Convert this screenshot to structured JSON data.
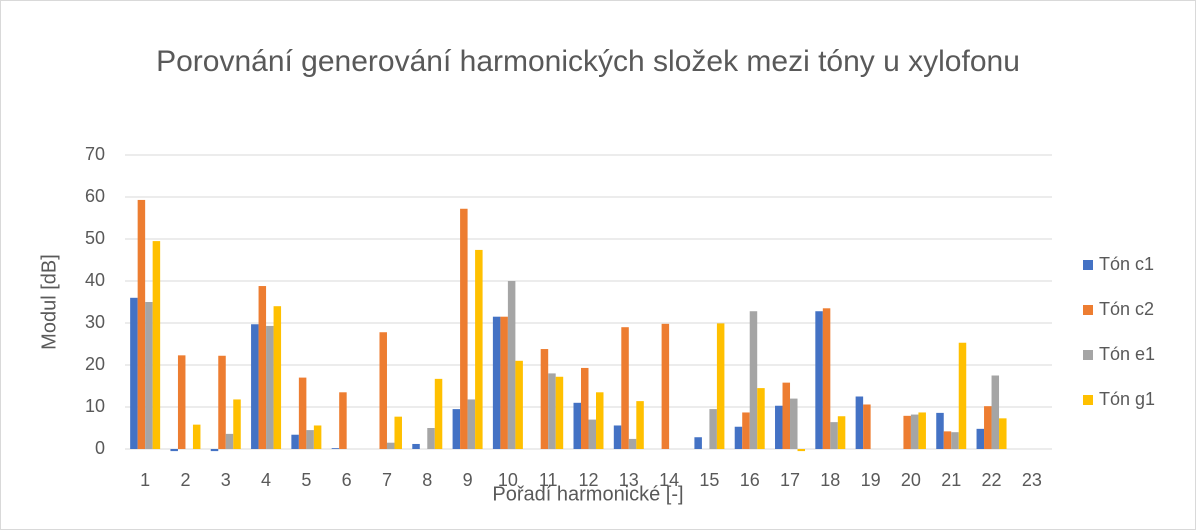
{
  "chart_data": {
    "type": "bar",
    "title": "Porovnání generování harmonických složek mezi tóny u xylofonu",
    "x_label": "Pořadí harmonické [-]",
    "y_label": "Modul [dB]",
    "categories": [
      "1",
      "2",
      "3",
      "4",
      "5",
      "6",
      "7",
      "8",
      "9",
      "10",
      "11",
      "12",
      "13",
      "14",
      "15",
      "16",
      "17",
      "18",
      "19",
      "20",
      "21",
      "22",
      "23"
    ],
    "series": [
      {
        "name": "Tón c1",
        "color": "#4472c4",
        "values": [
          36,
          -0.5,
          -0.5,
          29.7,
          3.4,
          0.2,
          0,
          1.2,
          9.5,
          31.5,
          0,
          11,
          5.6,
          0,
          2.8,
          5.3,
          10.3,
          32.8,
          12.5,
          0,
          8.6,
          4.8,
          0
        ]
      },
      {
        "name": "Tón c2",
        "color": "#ed7d31",
        "values": [
          59.3,
          22.3,
          22.2,
          38.8,
          17,
          13.5,
          27.8,
          0,
          57.2,
          31.5,
          23.8,
          19.3,
          29,
          29.8,
          0,
          8.7,
          15.8,
          33.5,
          10.6,
          7.9,
          4.2,
          10.2,
          0
        ]
      },
      {
        "name": "Tón e1",
        "color": "#a5a5a5",
        "values": [
          35,
          0,
          3.6,
          29.3,
          4.5,
          0,
          1.5,
          5,
          11.8,
          40,
          18,
          7,
          2.4,
          0,
          9.5,
          32.8,
          12,
          6.4,
          0,
          8.2,
          4,
          17.5,
          0
        ]
      },
      {
        "name": "Tón g1",
        "color": "#ffc000",
        "values": [
          49.5,
          5.8,
          11.8,
          34,
          5.6,
          0,
          7.7,
          16.7,
          47.4,
          21,
          17.2,
          13.5,
          11.4,
          0,
          29.9,
          14.5,
          -0.5,
          7.8,
          0,
          8.7,
          25.3,
          7.3,
          0
        ]
      }
    ],
    "ylim": [
      0,
      70
    ],
    "yticks": [
      0,
      10,
      20,
      30,
      40,
      50,
      60,
      70
    ],
    "grid": true,
    "legend": "right"
  }
}
